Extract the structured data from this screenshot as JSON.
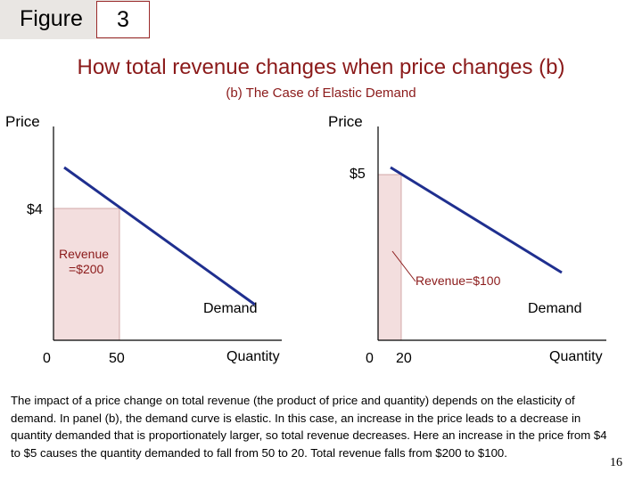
{
  "figure": {
    "word": "Figure",
    "number": "3"
  },
  "title": "How total revenue changes when price changes (b)",
  "subtitle": "(b) The Case of Elastic Demand",
  "chart_data": [
    {
      "type": "line",
      "ylabel": "Price",
      "xlabel": "Quantity",
      "curve_label": "Demand",
      "price": 4,
      "price_label": "$4",
      "quantity": 50,
      "quantity_label": "50",
      "origin_label": "0",
      "revenue": 200,
      "revenue_label_line1": "Revenue",
      "revenue_label_line2": "=$200"
    },
    {
      "type": "line",
      "ylabel": "Price",
      "xlabel": "Quantity",
      "curve_label": "Demand",
      "price": 5,
      "price_label": "$5",
      "quantity": 20,
      "quantity_label": "20",
      "origin_label": "0",
      "revenue": 100,
      "revenue_label": "Revenue=$100"
    }
  ],
  "colors": {
    "title": "#8b1a1a",
    "demand_line": "#1f2f8f",
    "revenue_fill": "#f3dede",
    "axis": "#000000"
  },
  "body_text": "The impact of a price change on total revenue (the product of price and quantity) depends on the elasticity of demand. In panel (b), the demand curve is elastic. In this case, an increase in the price leads to a decrease in quantity demanded that is proportionately larger, so total revenue decreases. Here an increase in the price from $4 to $5 causes the quantity demanded to fall from 50 to 20. Total revenue falls from $200 to $100.",
  "page_number": "16"
}
